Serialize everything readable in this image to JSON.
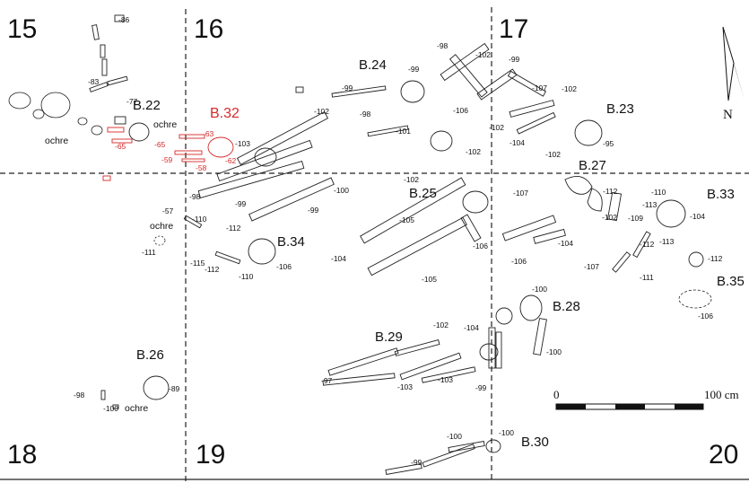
{
  "grid_squares": [
    "15",
    "16",
    "17",
    "18",
    "19",
    "20"
  ],
  "north_label": "N",
  "burials": {
    "b22": "B.22",
    "b32": "B.32",
    "b24": "B.24",
    "b23": "B.23",
    "b27": "B.27",
    "b25": "B.25",
    "b33": "B.33",
    "b34": "B.34",
    "b35": "B.35",
    "b28": "B.28",
    "b29": "B.29",
    "b26": "B.26",
    "b30": "B.30"
  },
  "notes": [
    "ochre",
    "ochre",
    "ochre",
    "ochre"
  ],
  "depths_black": [
    "-86",
    "-83",
    "-77",
    "-98",
    "-102",
    "-99",
    "-99",
    "-98",
    "-101",
    "-102",
    "-107",
    "-102",
    "-99",
    "-106",
    "-102",
    "-102",
    "-104",
    "-102",
    "-95",
    "-103",
    "-98",
    "-99",
    "-99",
    "-100",
    "-102",
    "-107",
    "-112",
    "-110",
    "-113",
    "-104",
    "-109",
    "-102",
    "-105",
    "-57",
    "-110",
    "-111",
    "-112",
    "-115",
    "-112",
    "-110",
    "-106",
    "-104",
    "-106",
    "-105",
    "-104",
    "-106",
    "-112",
    "-107",
    "-111",
    "-113",
    "-112",
    "-100",
    "-106",
    "-102",
    "-104",
    "-100",
    "-97",
    "-103",
    "-103",
    "-99",
    "-98",
    "-89",
    "-100",
    "-100",
    "-99",
    "-100"
  ],
  "depths_red": [
    "-65",
    "-65",
    "-63",
    "-59",
    "-58",
    "-62"
  ],
  "scale": {
    "start": "0",
    "end": "100 cm"
  },
  "colors": {
    "ink": "#222222",
    "highlight": "#d42a2a"
  }
}
